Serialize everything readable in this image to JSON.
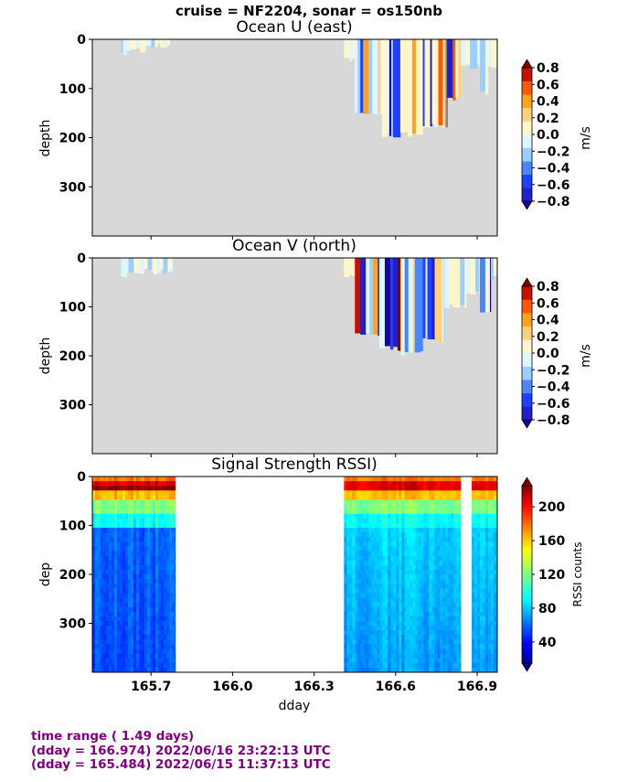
{
  "header": {
    "title": "cruise = NF2204,  sonar = os150nb"
  },
  "footer": {
    "line1": "time range ( 1.49 days)",
    "line2": "(dday = 166.974) 2022/06/16 23:22:13 UTC",
    "line3": "(dday = 165.484) 2022/06/15 11:37:13 UTC"
  },
  "colors": {
    "nodata": "#d8d8d8",
    "div_levels": [
      "#2020c8",
      "#2040ff",
      "#4a86ff",
      "#9ad0ff",
      "#e0f6ff",
      "#fff6cc",
      "#ffd27a",
      "#ffa21e",
      "#ff5a00",
      "#c81000"
    ],
    "div_under": "#1600a0",
    "div_over": "#800000",
    "footer_text": "#800080"
  },
  "chart_data": [
    {
      "type": "heatmap",
      "title": "Ocean U (east)",
      "xlabel": "",
      "ylabel": "depth",
      "xlim": [
        165.484,
        166.974
      ],
      "ylim": [
        400,
        0
      ],
      "yticks": [
        0,
        100,
        200,
        300
      ],
      "xticks": [
        165.7,
        166.0,
        166.3,
        166.6,
        166.9
      ],
      "colorbar": {
        "label": "m/s",
        "ticks": [
          "0.8",
          "0.6",
          "0.4",
          "0.2",
          "0.0",
          "−0.2",
          "−0.4",
          "−0.6",
          "−0.8"
        ],
        "range": [
          -0.8,
          0.8
        ],
        "extend": "both"
      },
      "colored_spans": [
        {
          "x": [
            165.59,
            165.61
          ],
          "depth": 30
        },
        {
          "x": [
            165.61,
            165.68
          ],
          "depth": 22
        },
        {
          "x": [
            165.68,
            165.77
          ],
          "depth": 12
        },
        {
          "x": [
            166.41,
            166.45
          ],
          "depth": 40
        },
        {
          "x": [
            166.45,
            166.55
          ],
          "depth": 150
        },
        {
          "x": [
            166.55,
            166.7
          ],
          "depth": 195
        },
        {
          "x": [
            166.7,
            166.79
          ],
          "depth": 175
        },
        {
          "x": [
            166.79,
            166.84
          ],
          "depth": 120
        },
        {
          "x": [
            166.84,
            166.91
          ],
          "depth": 55
        },
        {
          "x": [
            166.91,
            166.94
          ],
          "depth": 110
        },
        {
          "x": [
            166.94,
            166.974
          ],
          "depth": 55
        }
      ]
    },
    {
      "type": "heatmap",
      "title": "Ocean V (north)",
      "xlabel": "",
      "ylabel": "depth",
      "xlim": [
        165.484,
        166.974
      ],
      "ylim": [
        400,
        0
      ],
      "yticks": [
        0,
        100,
        200,
        300
      ],
      "xticks": [
        165.7,
        166.0,
        166.3,
        166.6,
        166.9
      ],
      "colorbar": {
        "label": "m/s",
        "ticks": [
          "0.8",
          "0.6",
          "0.4",
          "0.2",
          "0.0",
          "−0.2",
          "−0.4",
          "−0.6",
          "−0.8"
        ],
        "range": [
          -0.8,
          0.8
        ],
        "extend": "both"
      },
      "colored_spans": [
        {
          "x": [
            165.59,
            165.61
          ],
          "depth": 40
        },
        {
          "x": [
            165.61,
            165.78
          ],
          "depth": 28
        },
        {
          "x": [
            166.41,
            166.45
          ],
          "depth": 40
        },
        {
          "x": [
            166.45,
            166.54
          ],
          "depth": 155
        },
        {
          "x": [
            166.54,
            166.62
          ],
          "depth": 185
        },
        {
          "x": [
            166.62,
            166.7
          ],
          "depth": 195
        },
        {
          "x": [
            166.7,
            166.78
          ],
          "depth": 170
        },
        {
          "x": [
            166.78,
            166.86
          ],
          "depth": 100
        },
        {
          "x": [
            166.86,
            166.91
          ],
          "depth": 70
        },
        {
          "x": [
            166.91,
            166.95
          ],
          "depth": 115
        },
        {
          "x": [
            166.95,
            166.974
          ],
          "depth": 40
        }
      ]
    },
    {
      "type": "heatmap",
      "title": "Signal Strength RSSI)",
      "xlabel": "dday",
      "ylabel": "dep",
      "xlim": [
        165.484,
        166.974
      ],
      "ylim": [
        400,
        0
      ],
      "yticks": [
        0,
        100,
        200,
        300
      ],
      "xticks": [
        165.7,
        166.0,
        166.3,
        166.6,
        166.9
      ],
      "colorbar": {
        "label": "RSSI counts",
        "ticks": [
          "200",
          "160",
          "120",
          "80",
          "40"
        ],
        "range": [
          15,
          225
        ],
        "extend": "both"
      },
      "data_segments": [
        {
          "x": [
            165.484,
            165.79
          ]
        },
        {
          "x": [
            166.41,
            166.84
          ]
        },
        {
          "x": [
            166.88,
            166.974
          ]
        }
      ]
    }
  ]
}
